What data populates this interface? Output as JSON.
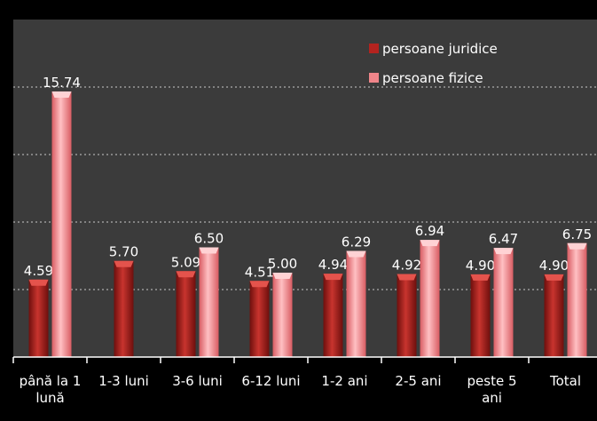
{
  "chart_data": {
    "type": "bar",
    "categories": [
      [
        "până la 1",
        "lună"
      ],
      [
        "1-3 luni"
      ],
      [
        "3-6 luni"
      ],
      [
        "6-12 luni"
      ],
      [
        "1-2 ani"
      ],
      [
        "2-5 ani"
      ],
      [
        "peste 5",
        "ani"
      ],
      [
        "Total"
      ]
    ],
    "series": [
      {
        "name": "persoane juridice",
        "color": "#b3231f",
        "values": [
          4.59,
          5.7,
          5.09,
          4.51,
          4.94,
          4.92,
          4.9,
          4.9
        ],
        "labels": [
          "4.59",
          "5.70",
          "5.09",
          "4.51",
          "4.94",
          "4.92",
          "4.90",
          "4.90"
        ]
      },
      {
        "name": "persoane fizice",
        "color": "#f0858a",
        "values": [
          15.74,
          null,
          6.5,
          5.0,
          6.29,
          6.94,
          6.47,
          6.75
        ],
        "labels": [
          "15.74",
          "",
          "6.50",
          "5.00",
          "6.29",
          "6.94",
          "6.47",
          "6.75"
        ]
      }
    ],
    "ylim": [
      0,
      20
    ],
    "gridlines": true,
    "legend_position": "top-right",
    "title": "",
    "xlabel": "",
    "ylabel": ""
  }
}
